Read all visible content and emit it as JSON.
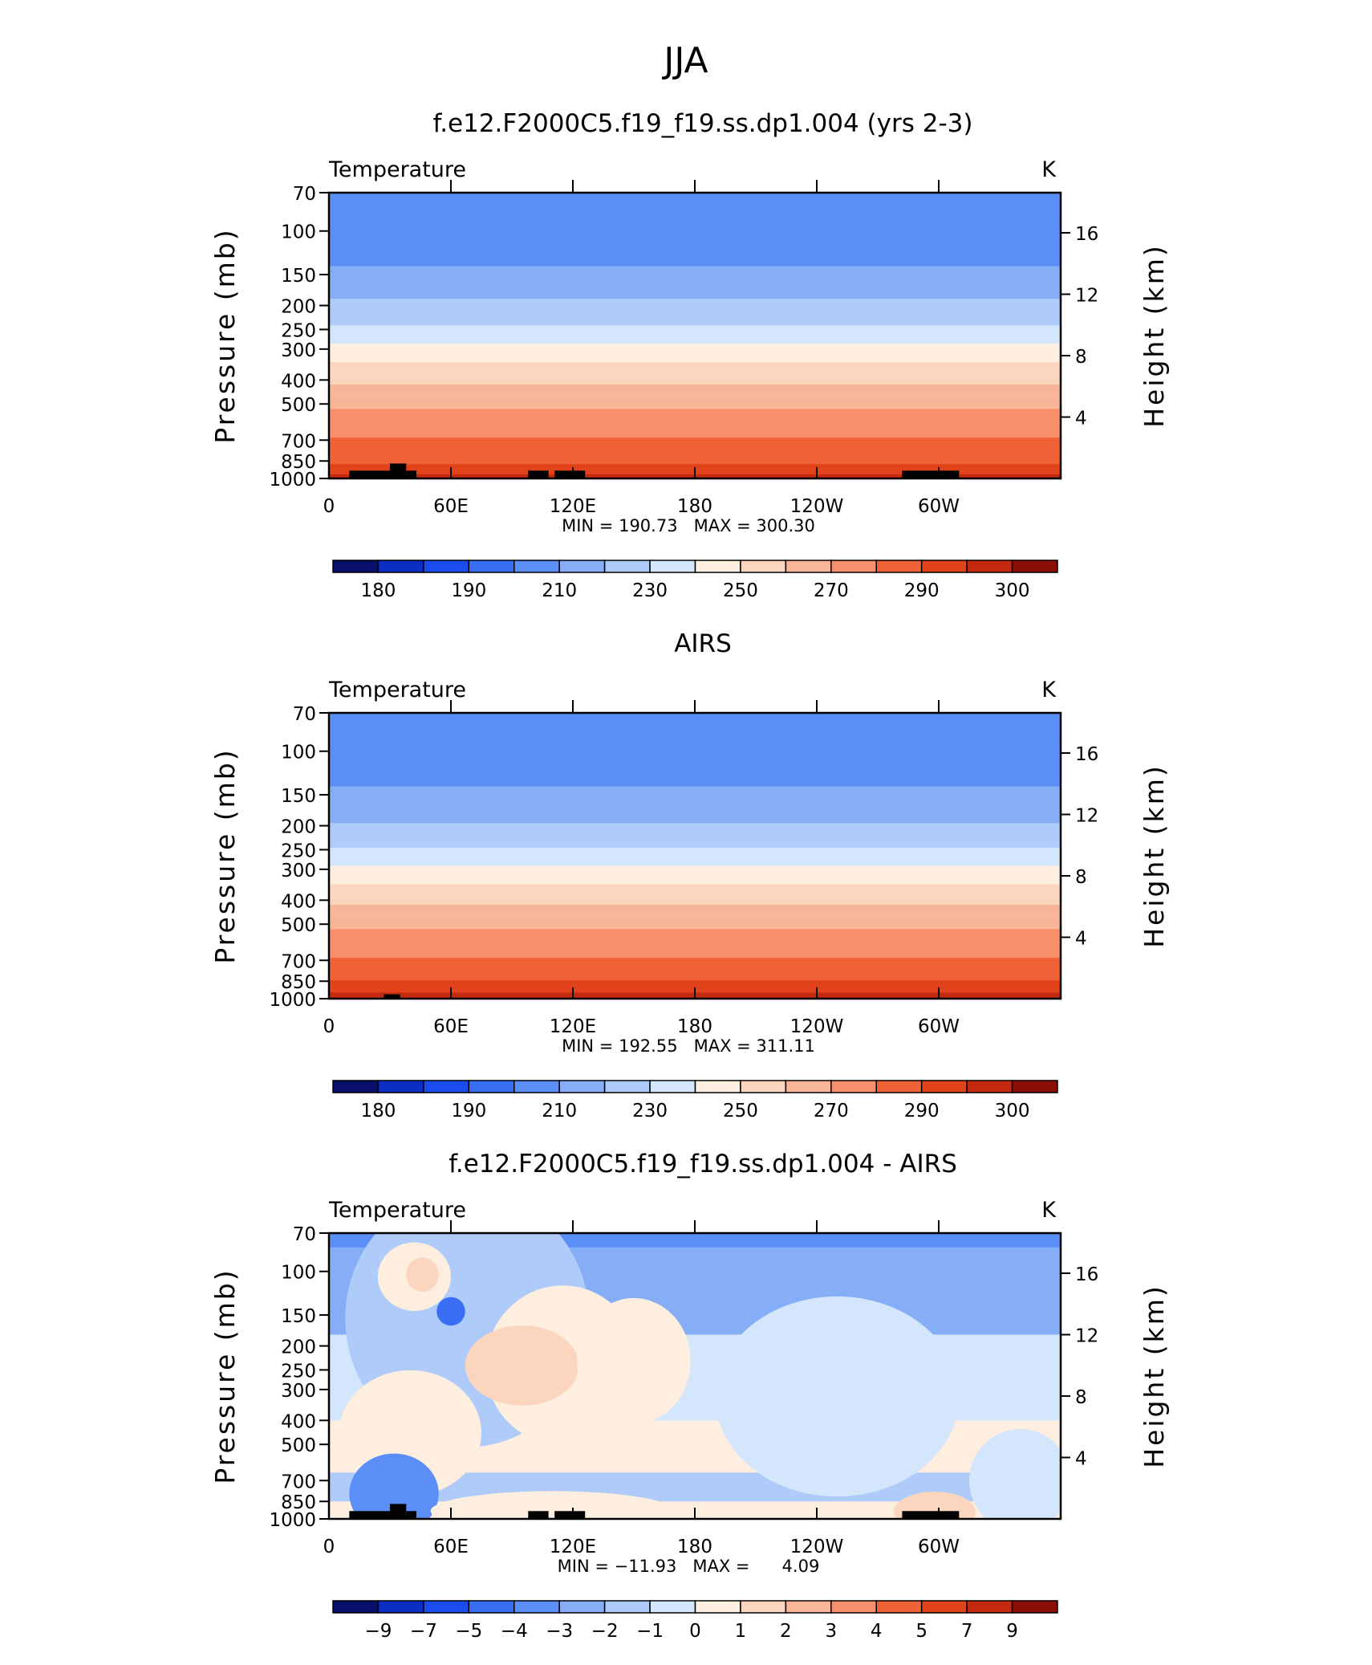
{
  "figure_title": "JJA",
  "chart_data": [
    {
      "type": "heatmap",
      "title": "f.e12.F2000C5.f19_f19.ss.dp1.004 (yrs 2-3)",
      "variable_label": "Temperature",
      "units": "K",
      "ylabel": "Pressure (mb)",
      "ylabel_right": "Height (km)",
      "pressure_ticks": [
        "70",
        "100",
        "150",
        "200",
        "250",
        "300",
        "400",
        "500",
        "700",
        "850",
        "1000"
      ],
      "pressure_values": [
        70,
        100,
        150,
        200,
        250,
        300,
        400,
        500,
        700,
        850,
        1000
      ],
      "height_ticks": [
        "16",
        "12",
        "8",
        "4"
      ],
      "height_values": [
        16,
        12,
        8,
        4
      ],
      "lon_ticks": [
        "0",
        "60E",
        "120E",
        "180",
        "120W",
        "60W"
      ],
      "lon_values": [
        0,
        60,
        120,
        180,
        240,
        300
      ],
      "xlim": [
        0,
        360
      ],
      "ylim": [
        1000,
        70
      ],
      "min_max_text": "MIN = 190.73   MAX = 300.30",
      "min": 190.73,
      "max": 300.3,
      "colorbar_labels": [
        "180",
        "190",
        "210",
        "230",
        "250",
        "270",
        "290",
        "300"
      ],
      "colorbar_levels": [
        180,
        185,
        190,
        200,
        210,
        220,
        230,
        240,
        250,
        260,
        270,
        280,
        290,
        295,
        300
      ],
      "colorbar_colors": [
        "#08106b",
        "#0c2fc2",
        "#1a4cf0",
        "#3a6ff5",
        "#5b8ff7",
        "#86aef7",
        "#aecbf9",
        "#d3e6fc",
        "#fdeee0",
        "#fbd5bd",
        "#f8b597",
        "#f68f6a",
        "#f06238",
        "#e2431a",
        "#c42a10",
        "#8a0d08"
      ],
      "temperature_profile": [
        {
          "p": 70,
          "t": 205
        },
        {
          "p": 100,
          "t": 205
        },
        {
          "p": 130,
          "t": 208
        },
        {
          "p": 150,
          "t": 213
        },
        {
          "p": 200,
          "t": 222
        },
        {
          "p": 250,
          "t": 232
        },
        {
          "p": 300,
          "t": 243
        },
        {
          "p": 350,
          "t": 252
        },
        {
          "p": 400,
          "t": 258
        },
        {
          "p": 500,
          "t": 268
        },
        {
          "p": 600,
          "t": 275
        },
        {
          "p": 700,
          "t": 281
        },
        {
          "p": 800,
          "t": 286
        },
        {
          "p": 850,
          "t": 289
        },
        {
          "p": 925,
          "t": 293
        },
        {
          "p": 1000,
          "t": 297
        }
      ],
      "terrain_blocks": [
        {
          "lon0": 10,
          "lon1": 30,
          "p": 930
        },
        {
          "lon0": 30,
          "lon1": 38,
          "p": 870
        },
        {
          "lon0": 38,
          "lon1": 43,
          "p": 930
        },
        {
          "lon0": 98,
          "lon1": 108,
          "p": 930
        },
        {
          "lon0": 111,
          "lon1": 126,
          "p": 930
        },
        {
          "lon0": 282,
          "lon1": 310,
          "p": 930
        }
      ]
    },
    {
      "type": "heatmap",
      "title": "AIRS",
      "variable_label": "Temperature",
      "units": "K",
      "ylabel": "Pressure (mb)",
      "ylabel_right": "Height (km)",
      "pressure_ticks": [
        "70",
        "100",
        "150",
        "200",
        "250",
        "300",
        "400",
        "500",
        "700",
        "850",
        "1000"
      ],
      "pressure_values": [
        70,
        100,
        150,
        200,
        250,
        300,
        400,
        500,
        700,
        850,
        1000
      ],
      "height_ticks": [
        "16",
        "12",
        "8",
        "4"
      ],
      "height_values": [
        16,
        12,
        8,
        4
      ],
      "lon_ticks": [
        "0",
        "60E",
        "120E",
        "180",
        "120W",
        "60W"
      ],
      "lon_values": [
        0,
        60,
        120,
        180,
        240,
        300
      ],
      "xlim": [
        0,
        360
      ],
      "ylim": [
        1000,
        70
      ],
      "min_max_text": "MIN = 192.55   MAX = 311.11",
      "min": 192.55,
      "max": 311.11,
      "colorbar_labels": [
        "180",
        "190",
        "210",
        "230",
        "250",
        "270",
        "290",
        "300"
      ],
      "colorbar_levels": [
        180,
        185,
        190,
        200,
        210,
        220,
        230,
        240,
        250,
        260,
        270,
        280,
        290,
        295,
        300
      ],
      "colorbar_colors": [
        "#08106b",
        "#0c2fc2",
        "#1a4cf0",
        "#3a6ff5",
        "#5b8ff7",
        "#86aef7",
        "#aecbf9",
        "#d3e6fc",
        "#fdeee0",
        "#fbd5bd",
        "#f8b597",
        "#f68f6a",
        "#f06238",
        "#e2431a",
        "#c42a10",
        "#8a0d08"
      ],
      "temperature_profile": [
        {
          "p": 70,
          "t": 207
        },
        {
          "p": 90,
          "t": 203
        },
        {
          "p": 120,
          "t": 206
        },
        {
          "p": 150,
          "t": 212
        },
        {
          "p": 200,
          "t": 221
        },
        {
          "p": 250,
          "t": 231
        },
        {
          "p": 300,
          "t": 242
        },
        {
          "p": 350,
          "t": 251
        },
        {
          "p": 400,
          "t": 258
        },
        {
          "p": 500,
          "t": 268
        },
        {
          "p": 600,
          "t": 275
        },
        {
          "p": 700,
          "t": 281
        },
        {
          "p": 800,
          "t": 287
        },
        {
          "p": 850,
          "t": 290
        },
        {
          "p": 925,
          "t": 294
        },
        {
          "p": 1000,
          "t": 299
        }
      ],
      "terrain_blocks": [
        {
          "lon0": 27,
          "lon1": 35,
          "p": 960
        }
      ]
    },
    {
      "type": "heatmap",
      "title": "f.e12.F2000C5.f19_f19.ss.dp1.004 - AIRS",
      "variable_label": "Temperature",
      "units": "K",
      "ylabel": "Pressure (mb)",
      "ylabel_right": "Height (km)",
      "pressure_ticks": [
        "70",
        "100",
        "150",
        "200",
        "250",
        "300",
        "400",
        "500",
        "700",
        "850",
        "1000"
      ],
      "pressure_values": [
        70,
        100,
        150,
        200,
        250,
        300,
        400,
        500,
        700,
        850,
        1000
      ],
      "height_ticks": [
        "16",
        "12",
        "8",
        "4"
      ],
      "height_values": [
        16,
        12,
        8,
        4
      ],
      "lon_ticks": [
        "0",
        "60E",
        "120E",
        "180",
        "120W",
        "60W"
      ],
      "lon_values": [
        0,
        60,
        120,
        180,
        240,
        300
      ],
      "xlim": [
        0,
        360
      ],
      "ylim": [
        1000,
        70
      ],
      "min_max_text": "MIN = −11.93   MAX =      4.09",
      "min": -11.93,
      "max": 4.09,
      "colorbar_labels": [
        "−9",
        "−7",
        "−5",
        "−4",
        "−3",
        "−2",
        "−1",
        "0",
        "1",
        "2",
        "3",
        "4",
        "5",
        "7",
        "9"
      ],
      "colorbar_levels": [
        -9,
        -7,
        -5,
        -4,
        -3,
        -2,
        -1,
        0,
        1,
        2,
        3,
        4,
        5,
        7,
        9
      ],
      "colorbar_colors": [
        "#08106b",
        "#0c2fc2",
        "#1a4cf0",
        "#3a6ff5",
        "#5b8ff7",
        "#86aef7",
        "#aecbf9",
        "#d3e6fc",
        "#fdeee0",
        "#fbd5bd",
        "#f8b597",
        "#f68f6a",
        "#f06238",
        "#e2431a",
        "#c42a10",
        "#8a0d08"
      ],
      "difference_regions": [
        {
          "kind": "band",
          "p0": 70,
          "p1": 80,
          "value": -3.5
        },
        {
          "kind": "band",
          "p0": 80,
          "p1": 180,
          "value": -2.5
        },
        {
          "kind": "band",
          "p0": 180,
          "p1": 400,
          "value": -0.5
        },
        {
          "kind": "band",
          "p0": 400,
          "p1": 650,
          "value": 0.5
        },
        {
          "kind": "band",
          "p0": 650,
          "p1": 850,
          "value": -1.5
        },
        {
          "kind": "band",
          "p0": 850,
          "p1": 1000,
          "value": 0.5
        },
        {
          "kind": "blob",
          "lon": 68,
          "p": 155,
          "dlon": 60,
          "dp": 0.45,
          "value": -1.5
        },
        {
          "kind": "blob",
          "lon": 42,
          "p": 105,
          "dlon": 18,
          "dp": 0.12,
          "value": 0.5
        },
        {
          "kind": "blob",
          "lon": 46,
          "p": 103,
          "dlon": 8,
          "dp": 0.06,
          "value": 1.5
        },
        {
          "kind": "blob",
          "lon": 60,
          "p": 145,
          "dlon": 7,
          "dp": 0.05,
          "value": -4.5
        },
        {
          "kind": "blob",
          "lon": 115,
          "p": 240,
          "dlon": 38,
          "dp": 0.28,
          "value": 0.5
        },
        {
          "kind": "blob",
          "lon": 95,
          "p": 240,
          "dlon": 28,
          "dp": 0.14,
          "value": 1.5
        },
        {
          "kind": "blob",
          "lon": 150,
          "p": 230,
          "dlon": 28,
          "dp": 0.22,
          "value": 0.5
        },
        {
          "kind": "blob",
          "lon": 40,
          "p": 450,
          "dlon": 35,
          "dp": 0.22,
          "value": 0.5
        },
        {
          "kind": "blob",
          "lon": 250,
          "p": 320,
          "dlon": 60,
          "dp": 0.35,
          "value": -0.5
        },
        {
          "kind": "blob",
          "lon": 32,
          "p": 790,
          "dlon": 22,
          "dp": 0.14,
          "value": -3.5
        },
        {
          "kind": "blob",
          "lon": 110,
          "p": 930,
          "dlon": 60,
          "dp": 0.07,
          "value": 0.5
        },
        {
          "kind": "blob",
          "lon": 298,
          "p": 935,
          "dlon": 20,
          "dp": 0.07,
          "value": 1.5
        },
        {
          "kind": "blob",
          "lon": 340,
          "p": 700,
          "dlon": 25,
          "dp": 0.18,
          "value": -0.5
        }
      ],
      "terrain_blocks": [
        {
          "lon0": 10,
          "lon1": 30,
          "p": 930
        },
        {
          "lon0": 30,
          "lon1": 38,
          "p": 870
        },
        {
          "lon0": 38,
          "lon1": 43,
          "p": 930
        },
        {
          "lon0": 98,
          "lon1": 108,
          "p": 930
        },
        {
          "lon0": 111,
          "lon1": 126,
          "p": 930
        },
        {
          "lon0": 282,
          "lon1": 310,
          "p": 930
        }
      ]
    }
  ]
}
